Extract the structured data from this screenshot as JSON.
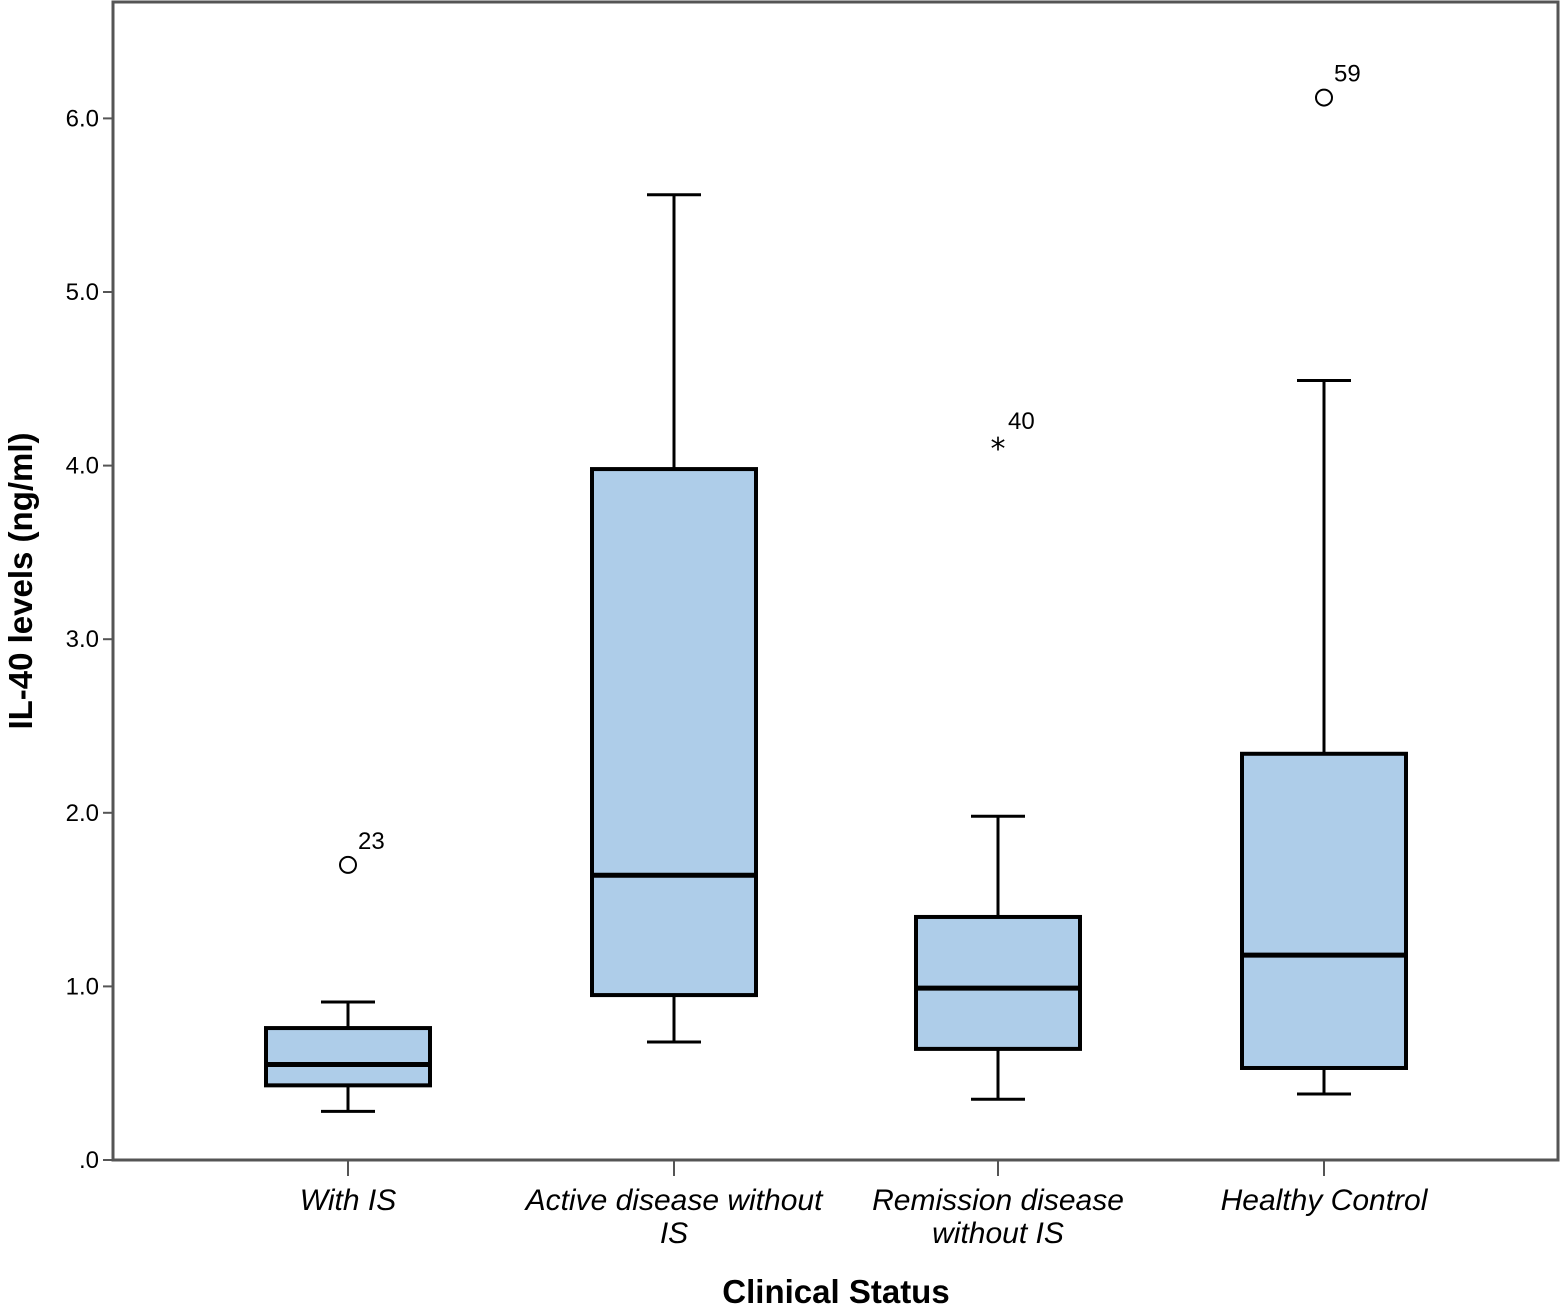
{
  "chart_data": {
    "type": "boxplot",
    "xlabel": "Clinical Status",
    "ylabel": "IL-40 levels (ng/ml)",
    "ylim": [
      0,
      6.7
    ],
    "yticks": [
      {
        "value": 0,
        "label": ".0"
      },
      {
        "value": 1,
        "label": "1.0"
      },
      {
        "value": 2,
        "label": "2.0"
      },
      {
        "value": 3,
        "label": "3.0"
      },
      {
        "value": 4,
        "label": "4.0"
      },
      {
        "value": 5,
        "label": "5.0"
      },
      {
        "value": 6,
        "label": "6.0"
      }
    ],
    "grid": false,
    "box_color": "#aecde9",
    "line_color": "#000000",
    "categories": [
      {
        "label_lines": [
          "With IS"
        ],
        "whisker_low": 0.28,
        "q1": 0.43,
        "median": 0.55,
        "q3": 0.76,
        "whisker_high": 0.91,
        "outliers": [
          {
            "value": 1.7,
            "label": "23",
            "marker": "circle"
          }
        ]
      },
      {
        "label_lines": [
          "Active disease without",
          "IS"
        ],
        "whisker_low": 0.68,
        "q1": 0.95,
        "median": 1.64,
        "q3": 3.98,
        "whisker_high": 5.56,
        "outliers": []
      },
      {
        "label_lines": [
          "Remission disease",
          "without IS"
        ],
        "whisker_low": 0.35,
        "q1": 0.64,
        "median": 0.99,
        "q3": 1.4,
        "whisker_high": 1.98,
        "outliers": [
          {
            "value": 4.12,
            "label": "40",
            "marker": "star"
          }
        ]
      },
      {
        "label_lines": [
          "Healthy Control"
        ],
        "whisker_low": 0.38,
        "q1": 0.53,
        "median": 1.18,
        "q3": 2.34,
        "whisker_high": 4.49,
        "outliers": [
          {
            "value": 6.12,
            "label": "59",
            "marker": "circle"
          }
        ]
      }
    ]
  }
}
